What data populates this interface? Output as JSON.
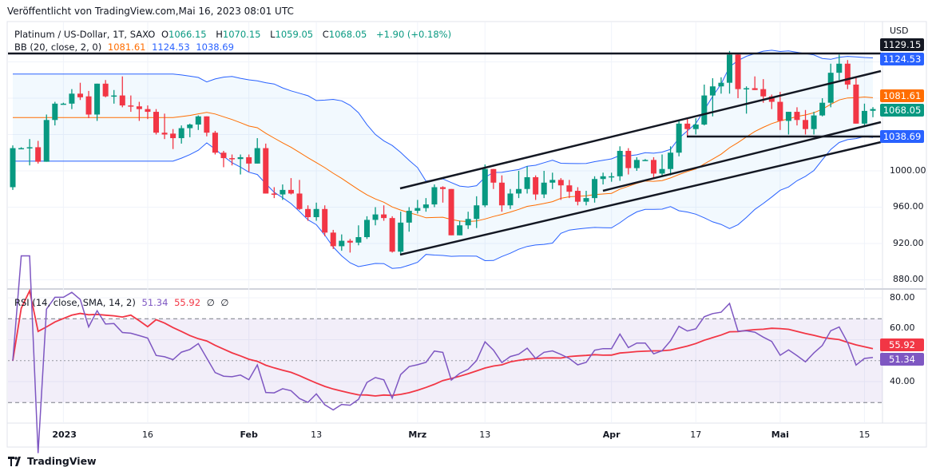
{
  "published": "Veröffentlicht von TradingView.com,Mai 16, 2023 08:01 UTC",
  "legend": {
    "symbol": "Platinum / US-Dollar, 1T, SAXO",
    "o_label": "O",
    "o": "1066.15",
    "h_label": "H",
    "h": "1070.15",
    "l_label": "L",
    "l": "1059.05",
    "c_label": "C",
    "c": "1068.05",
    "change": "+1.90 (+0.18%)",
    "bb_label": "BB (20, close, 2, 0)",
    "bb_mid": "1081.61",
    "bb_up": "1124.53",
    "bb_low": "1038.69"
  },
  "rsi_legend": {
    "label": "RSI (14, close, SMA, 14, 2)",
    "rsi": "51.34",
    "ma": "55.92",
    "e1": "∅",
    "e2": "∅"
  },
  "price_axis": {
    "currency": "USD",
    "ticks": [
      "1000.00",
      "960.00",
      "920.00",
      "880.00"
    ],
    "tick_values": [
      1000,
      960,
      920,
      880
    ]
  },
  "rsi_axis": {
    "ticks": [
      "80.00",
      "60.00",
      "40.00"
    ],
    "tick_values": [
      80,
      60,
      40
    ]
  },
  "tags": {
    "hline": "1129.15",
    "bb_up": "1124.53",
    "bb_mid": "1081.61",
    "close": "1068.05",
    "bb_low": "1038.69",
    "rsi_ma": "55.92",
    "rsi": "51.34"
  },
  "footer": {
    "brand": "TradingView"
  },
  "colors": {
    "up": "#089981",
    "down": "#f23645",
    "bb": "#2962ff",
    "basis": "#ff6d00",
    "rsi": "#7e57c2",
    "rsi_ma": "#f23645"
  },
  "chart_data": {
    "type": "candlestick",
    "title": "Platinum / US-Dollar, 1T, SAXO",
    "ylim": [
      870,
      1140
    ],
    "time_ticks": [
      {
        "label": "2023",
        "index": 6
      },
      {
        "label": "16",
        "index": 16
      },
      {
        "label": "Feb",
        "index": 28
      },
      {
        "label": "13",
        "index": 36
      },
      {
        "label": "Mrz",
        "index": 48
      },
      {
        "label": "13",
        "index": 56
      },
      {
        "label": "Apr",
        "index": 71
      },
      {
        "label": "17",
        "index": 81
      },
      {
        "label": "Mai",
        "index": 91
      },
      {
        "label": "15",
        "index": 101
      }
    ],
    "ohlc": [
      [
        982,
        1028,
        979,
        1025
      ],
      [
        1025,
        1026,
        1024,
        1025
      ],
      [
        1025,
        1035,
        1006,
        1026
      ],
      [
        1026,
        1033,
        1008,
        1010
      ],
      [
        1010,
        1062,
        1010,
        1056
      ],
      [
        1056,
        1076,
        1050,
        1074
      ],
      [
        1074,
        1075,
        1073,
        1074
      ],
      [
        1074,
        1090,
        1068,
        1085
      ],
      [
        1085,
        1097,
        1078,
        1081
      ],
      [
        1082,
        1088,
        1058,
        1062
      ],
      [
        1062,
        1096,
        1055,
        1096
      ],
      [
        1096,
        1100,
        1081,
        1082
      ],
      [
        1082,
        1089,
        1074,
        1083
      ],
      [
        1083,
        1104,
        1070,
        1072
      ],
      [
        1072,
        1083,
        1065,
        1071
      ],
      [
        1071,
        1076,
        1055,
        1068
      ],
      [
        1068,
        1072,
        1057,
        1065
      ],
      [
        1065,
        1068,
        1040,
        1042
      ],
      [
        1042,
        1063,
        1035,
        1040
      ],
      [
        1041,
        1046,
        1024,
        1036
      ],
      [
        1036,
        1050,
        1030,
        1047
      ],
      [
        1047,
        1052,
        1037,
        1051
      ],
      [
        1051,
        1061,
        1045,
        1060
      ],
      [
        1060,
        1060,
        1038,
        1042
      ],
      [
        1042,
        1044,
        1018,
        1020
      ],
      [
        1020,
        1022,
        1004,
        1014
      ],
      [
        1014,
        1018,
        1006,
        1013
      ],
      [
        1013,
        1018,
        996,
        1015
      ],
      [
        1015,
        1018,
        999,
        1008
      ],
      [
        1008,
        1036,
        1008,
        1025
      ],
      [
        1025,
        1030,
        975,
        975
      ],
      [
        975,
        982,
        970,
        974
      ],
      [
        974,
        985,
        968,
        979
      ],
      [
        979,
        992,
        974,
        975
      ],
      [
        975,
        990,
        957,
        958
      ],
      [
        958,
        962,
        945,
        949
      ],
      [
        949,
        965,
        945,
        958
      ],
      [
        958,
        962,
        928,
        932
      ],
      [
        932,
        935,
        914,
        917
      ],
      [
        917,
        930,
        912,
        923
      ],
      [
        923,
        925,
        910,
        921
      ],
      [
        921,
        940,
        918,
        927
      ],
      [
        927,
        950,
        925,
        946
      ],
      [
        946,
        960,
        940,
        952
      ],
      [
        952,
        962,
        945,
        948
      ],
      [
        948,
        950,
        910,
        911
      ],
      [
        911,
        955,
        908,
        943
      ],
      [
        943,
        960,
        933,
        956
      ],
      [
        956,
        968,
        953,
        959
      ],
      [
        959,
        970,
        955,
        963
      ],
      [
        963,
        985,
        960,
        982
      ],
      [
        982,
        983,
        965,
        980
      ],
      [
        980,
        980,
        929,
        929
      ],
      [
        929,
        945,
        929,
        940
      ],
      [
        940,
        955,
        936,
        947
      ],
      [
        947,
        972,
        937,
        962
      ],
      [
        962,
        1007,
        960,
        1002
      ],
      [
        1002,
        1002,
        980,
        987
      ],
      [
        987,
        995,
        955,
        962
      ],
      [
        962,
        980,
        958,
        975
      ],
      [
        975,
        1000,
        970,
        980
      ],
      [
        980,
        1005,
        975,
        993
      ],
      [
        993,
        995,
        968,
        974
      ],
      [
        974,
        1000,
        970,
        987
      ],
      [
        987,
        998,
        980,
        990
      ],
      [
        990,
        992,
        968,
        984
      ],
      [
        984,
        990,
        970,
        977
      ],
      [
        978,
        982,
        962,
        966
      ],
      [
        966,
        978,
        962,
        970
      ],
      [
        970,
        994,
        965,
        991
      ],
      [
        991,
        998,
        985,
        994
      ],
      [
        994,
        998,
        988,
        994
      ],
      [
        994,
        1027,
        989,
        1022
      ],
      [
        1022,
        1025,
        996,
        1003
      ],
      [
        1003,
        1015,
        1000,
        1012
      ],
      [
        1012,
        1013,
        1011,
        1012
      ],
      [
        1012,
        1015,
        992,
        997
      ],
      [
        997,
        1018,
        995,
        1002
      ],
      [
        1002,
        1027,
        995,
        1020
      ],
      [
        1020,
        1056,
        1016,
        1052
      ],
      [
        1052,
        1058,
        1037,
        1046
      ],
      [
        1046,
        1058,
        1040,
        1051
      ],
      [
        1051,
        1095,
        1050,
        1083
      ],
      [
        1083,
        1102,
        1060,
        1093
      ],
      [
        1093,
        1103,
        1085,
        1097
      ],
      [
        1097,
        1132,
        1085,
        1128
      ],
      [
        1128,
        1130,
        1080,
        1090
      ],
      [
        1091,
        1093,
        1063,
        1091
      ],
      [
        1091,
        1104,
        1089,
        1089
      ],
      [
        1090,
        1101,
        1075,
        1082
      ],
      [
        1082,
        1084,
        1068,
        1076
      ],
      [
        1076,
        1087,
        1045,
        1055
      ],
      [
        1055,
        1065,
        1040,
        1065
      ],
      [
        1065,
        1070,
        1050,
        1056
      ],
      [
        1056,
        1067,
        1040,
        1046
      ],
      [
        1046,
        1065,
        1040,
        1061
      ],
      [
        1061,
        1080,
        1060,
        1075
      ],
      [
        1075,
        1118,
        1070,
        1108
      ],
      [
        1108,
        1128,
        1100,
        1118
      ],
      [
        1118,
        1122,
        1090,
        1095
      ],
      [
        1095,
        1103,
        1052,
        1052
      ],
      [
        1052,
        1074,
        1050,
        1066
      ],
      [
        1066.15,
        1070.15,
        1059.05,
        1068.05
      ]
    ],
    "indicators": {
      "bb": {
        "length": 20,
        "mult": 2
      },
      "rsi": {
        "length": 14,
        "ma_length": 14,
        "upper": 70,
        "lower": 30,
        "ylim": [
          20,
          85
        ]
      }
    },
    "drawings": {
      "horizontal_levels": [
        1129.15,
        1037
      ]
    }
  }
}
